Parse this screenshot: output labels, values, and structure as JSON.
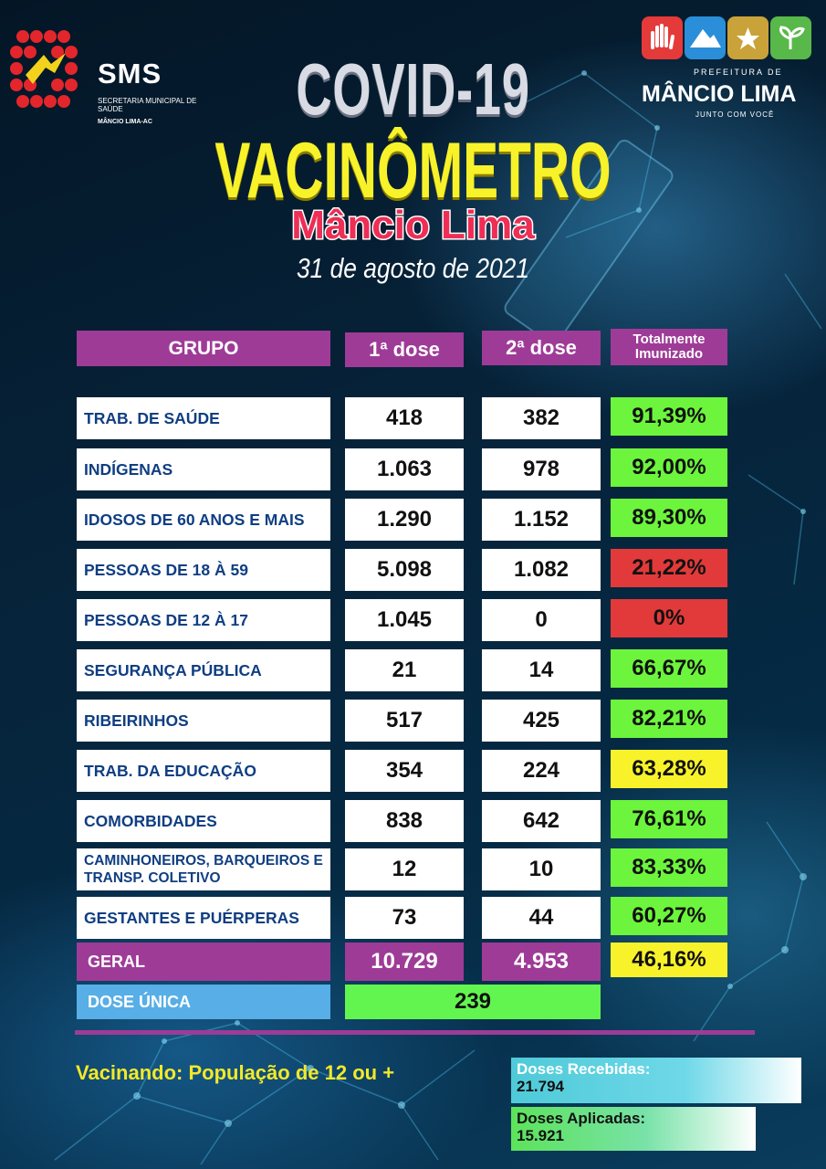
{
  "header": {
    "sms_logo": {
      "title": "SMS",
      "subtitle": "SECRETARIA MUNICIPAL DE SAÚDE",
      "city": "MÂNCIO LIMA-AC"
    },
    "prefeitura_logo": {
      "prefix": "PREFEITURA DE",
      "city": "MÂNCIO LIMA",
      "slogan": "JUNTO COM VOCÊ",
      "tiles": [
        "hand-icon",
        "mountain-icon",
        "star-icon",
        "sprout-icon"
      ],
      "tile_colors": [
        "#e53a3a",
        "#2a8fd8",
        "#c9a23a",
        "#58b84a"
      ]
    },
    "title": "COVID-19",
    "subtitle": "VACINÔMETRO",
    "city": "Mâncio Lima",
    "date": "31 de agosto de 2021"
  },
  "table": {
    "headers": {
      "group": "GRUPO",
      "first_dose": "1ª dose",
      "second_dose": "2ª dose",
      "immunized": "Totalmente Imunizado"
    },
    "rows": [
      {
        "group": "TRAB. DE SAÚDE",
        "first": "418",
        "second": "382",
        "pct": "91,39%",
        "status": "green"
      },
      {
        "group": "INDÍGENAS",
        "first": "1.063",
        "second": "978",
        "pct": "92,00%",
        "status": "green"
      },
      {
        "group": "IDOSOS DE 60 ANOS E MAIS",
        "first": "1.290",
        "second": "1.152",
        "pct": "89,30%",
        "status": "green"
      },
      {
        "group": "PESSOAS DE  18 À 59",
        "first": "5.098",
        "second": "1.082",
        "pct": "21,22%",
        "status": "red"
      },
      {
        "group": "PESSOAS DE  12 À 17",
        "first": "1.045",
        "second": "0",
        "pct": "0%",
        "status": "red"
      },
      {
        "group": "SEGURANÇA PÚBLICA",
        "first": "21",
        "second": "14",
        "pct": "66,67%",
        "status": "green"
      },
      {
        "group": "RIBEIRINHOS",
        "first": "517",
        "second": "425",
        "pct": "82,21%",
        "status": "green"
      },
      {
        "group": "TRAB. DA EDUCAÇÃO",
        "first": "354",
        "second": "224",
        "pct": "63,28%",
        "status": "yellow"
      },
      {
        "group": "COMORBIDADES",
        "first": "838",
        "second": "642",
        "pct": "76,61%",
        "status": "green"
      },
      {
        "group": "CAMINHONEIROS, BARQUEIROS E TRANSP. COLETIVO",
        "first": "12",
        "second": "10",
        "pct": "83,33%",
        "status": "green"
      },
      {
        "group": "GESTANTES E PUÉRPERAS",
        "first": "73",
        "second": "44",
        "pct": "60,27%",
        "status": "green"
      }
    ],
    "total": {
      "group": "GERAL",
      "first": "10.729",
      "second": "4.953",
      "pct": "46,16%",
      "status": "yellow"
    },
    "single_dose": {
      "group": "DOSE ÚNICA",
      "value": "239"
    }
  },
  "status_colors": {
    "green": "#6cf53c",
    "red": "#e23a3a",
    "yellow": "#f8f22a"
  },
  "footer": {
    "note": "Vacinando: População de 12 ou +",
    "doses_received_label": "Doses Recebidas:",
    "doses_received_value": "21.794",
    "doses_applied_label": "Doses Aplicadas:",
    "doses_applied_value": "15.921"
  }
}
